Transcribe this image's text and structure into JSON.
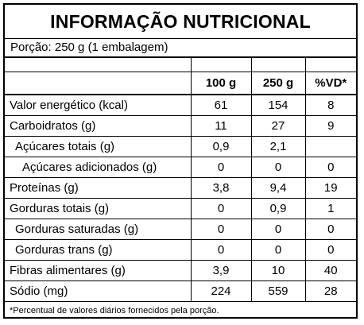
{
  "title": "INFORMAÇÃO NUTRICIONAL",
  "portion": "Porção: 250 g (1 embalagem)",
  "headers": [
    "100 g",
    "250 g",
    "%VD*"
  ],
  "rows": [
    {
      "label": "Valor energético (kcal)",
      "v100": "61",
      "v250": "154",
      "vd": "8"
    },
    {
      "label": "Carboidratos (g)",
      "v100": "11",
      "v250": "27",
      "vd": "9"
    },
    {
      "label": "Açúcares totais (g)",
      "v100": "0,9",
      "v250": "2,1",
      "vd": ""
    },
    {
      "label": "Açúcares adicionados (g)",
      "v100": "0",
      "v250": "0",
      "vd": "0"
    },
    {
      "label": "Proteínas (g)",
      "v100": "3,8",
      "v250": "9,4",
      "vd": "19"
    },
    {
      "label": "Gorduras totais (g)",
      "v100": "0",
      "v250": "0,9",
      "vd": "1"
    },
    {
      "label": "Gorduras saturadas (g)",
      "v100": "0",
      "v250": "0",
      "vd": "0"
    },
    {
      "label": "Gorduras trans (g)",
      "v100": "0",
      "v250": "0",
      "vd": "0"
    },
    {
      "label": "Fibras alimentares (g)",
      "v100": "3,9",
      "v250": "10",
      "vd": "40"
    },
    {
      "label": "Sódio (mg)",
      "v100": "224",
      "v250": "559",
      "vd": "28"
    }
  ],
  "footnote": "*Percentual de valores diários fornecidos pela porção."
}
